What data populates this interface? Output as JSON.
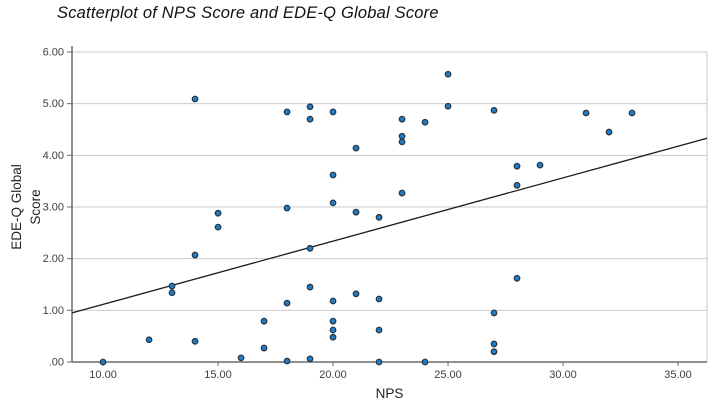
{
  "chart_data": {
    "type": "scatter",
    "title": "Scatterplot of NPS Score and EDE-Q Global Score",
    "xlabel": "NPS",
    "ylabel": "EDE-Q Global Score",
    "ylabel_lines": [
      "EDE-Q Global",
      "Score"
    ],
    "xlim": [
      8.65,
      36.26
    ],
    "ylim": [
      0,
      6
    ],
    "grid": "horizontal-only",
    "legend": "none",
    "x_tick_values": [
      10,
      15,
      20,
      25,
      30,
      35
    ],
    "x_tick_labels": [
      "10.00",
      "15.00",
      "20.00",
      "25.00",
      "30.00",
      "35.00"
    ],
    "y_tick_values": [
      0,
      1,
      2,
      3,
      4,
      5,
      6
    ],
    "y_tick_labels": [
      ".00",
      "1.00",
      "2.00",
      "3.00",
      "4.00",
      "5.00",
      "6.00"
    ],
    "points": [
      [
        14,
        5.09
      ],
      [
        25,
        5.57
      ],
      [
        25,
        4.95
      ],
      [
        19,
        4.94
      ],
      [
        19,
        4.7
      ],
      [
        18,
        4.84
      ],
      [
        20,
        4.84
      ],
      [
        27,
        4.87
      ],
      [
        23,
        4.7
      ],
      [
        24,
        4.64
      ],
      [
        23,
        4.37
      ],
      [
        23,
        4.26
      ],
      [
        21,
        4.14
      ],
      [
        31,
        4.82
      ],
      [
        33,
        4.82
      ],
      [
        32,
        4.45
      ],
      [
        20,
        3.62
      ],
      [
        20,
        3.08
      ],
      [
        28,
        3.79
      ],
      [
        29,
        3.81
      ],
      [
        28,
        3.42
      ],
      [
        23,
        3.27
      ],
      [
        15,
        2.88
      ],
      [
        15,
        2.61
      ],
      [
        14,
        2.07
      ],
      [
        18,
        2.98
      ],
      [
        21,
        2.9
      ],
      [
        22,
        2.8
      ],
      [
        19,
        2.2
      ],
      [
        13,
        1.47
      ],
      [
        13,
        1.34
      ],
      [
        18,
        1.14
      ],
      [
        19,
        1.45
      ],
      [
        28,
        1.62
      ],
      [
        20,
        1.18
      ],
      [
        21,
        1.32
      ],
      [
        22,
        1.22
      ],
      [
        27,
        0.95
      ],
      [
        17,
        0.79
      ],
      [
        20,
        0.79
      ],
      [
        20,
        0.62
      ],
      [
        20,
        0.48
      ],
      [
        22,
        0.62
      ],
      [
        12,
        0.43
      ],
      [
        14,
        0.4
      ],
      [
        27,
        0.35
      ],
      [
        17,
        0.27
      ],
      [
        27,
        0.2
      ],
      [
        16,
        0.08
      ],
      [
        19,
        0.06
      ],
      [
        10,
        0.0
      ],
      [
        18,
        0.02
      ],
      [
        22,
        0.0
      ],
      [
        24,
        0.0
      ]
    ],
    "regression_line": {
      "x1": 8.65,
      "y1": 0.95,
      "x2": 36.26,
      "y2": 4.33
    },
    "colors": {
      "point_fill": "#1b80d2",
      "point_stroke": "#2a3a46",
      "grid": "#cbcbcb",
      "frame": "#c4c4c4",
      "axis": "#6b6b6b",
      "regression": "#1c1c1c",
      "title_text": "#111111",
      "tick_text": "#3f3f3f"
    }
  }
}
